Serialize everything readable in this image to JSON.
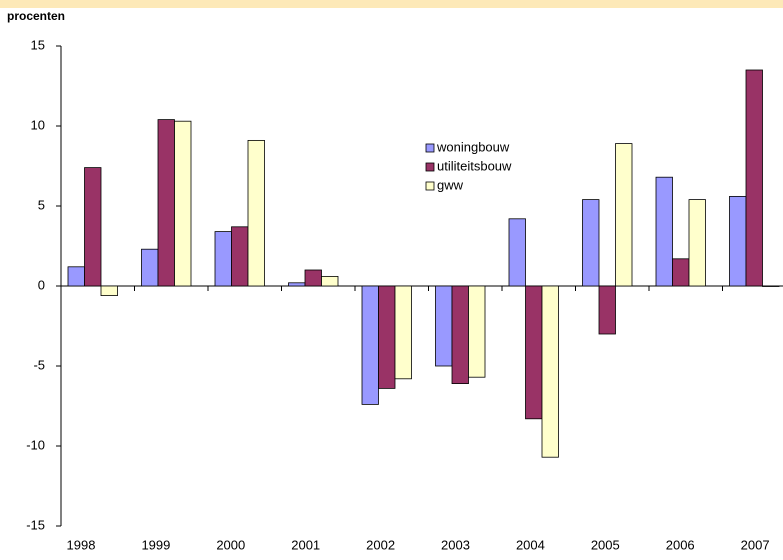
{
  "chart_data": {
    "type": "bar",
    "ylabel": "procenten",
    "categories": [
      "1998",
      "1999",
      "2000",
      "2001",
      "2002",
      "2003",
      "2004",
      "2005",
      "2006",
      "2007"
    ],
    "series": [
      {
        "name": "woningbouw",
        "color": "#9999ff",
        "values": [
          1.2,
          2.3,
          3.4,
          0.2,
          -7.4,
          -5.0,
          4.2,
          5.4,
          6.8,
          5.6
        ]
      },
      {
        "name": "utiliteitsbouw",
        "color": "#993366",
        "values": [
          7.4,
          10.4,
          3.7,
          1.0,
          -6.4,
          -6.1,
          -8.3,
          -3.0,
          1.7,
          13.5
        ]
      },
      {
        "name": "gww",
        "color": "#ffffcc",
        "values": [
          -0.6,
          10.3,
          9.1,
          0.6,
          -5.8,
          -5.7,
          -10.7,
          8.9,
          5.4,
          0
        ]
      }
    ],
    "ylim": [
      -15,
      15
    ],
    "yticks": [
      -15,
      -10,
      -5,
      0,
      5,
      10,
      15
    ],
    "grid": false
  }
}
